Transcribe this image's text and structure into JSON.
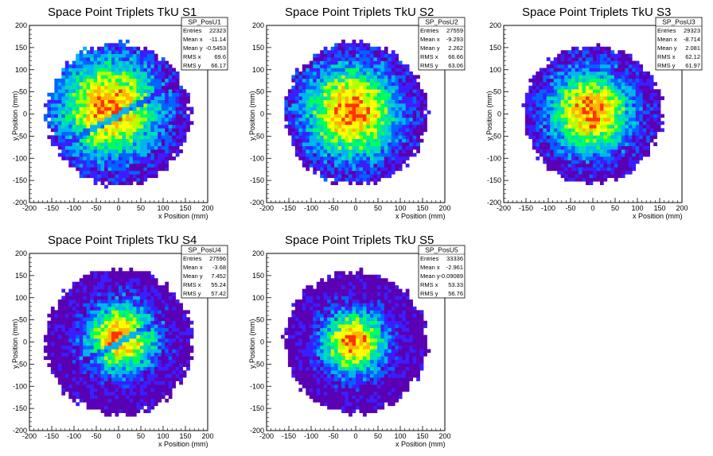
{
  "chart_data": [
    {
      "type": "heatmap",
      "title": "Space Point Triplets TkU S1",
      "xlabel": "x Position (mm)",
      "ylabel": "y Position (mm)",
      "xlim": [
        -200,
        200
      ],
      "ylim": [
        -200,
        200
      ],
      "xticks": [
        -200,
        -150,
        -100,
        -50,
        0,
        50,
        100,
        150,
        200
      ],
      "yticks": [
        -200,
        -150,
        -100,
        -50,
        0,
        50,
        100,
        150,
        200
      ],
      "stats": {
        "name": "SP_PosU1",
        "rows": [
          {
            "label": "Entries",
            "value": "22323"
          },
          {
            "label": "Mean x",
            "value": "-11.14"
          },
          {
            "label": "Mean y",
            "value": "-0.5453"
          },
          {
            "label": "RMS x",
            "value": "69.6"
          },
          {
            "label": "RMS y",
            "value": "66.17"
          }
        ]
      },
      "distribution": {
        "center_x": -20,
        "center_y": 15,
        "radius": 160,
        "sigma": 80,
        "gap_band": "diagonal"
      }
    },
    {
      "type": "heatmap",
      "title": "Space Point Triplets TkU S2",
      "xlabel": "x Position (mm)",
      "ylabel": "y Position (mm)",
      "xlim": [
        -200,
        200
      ],
      "ylim": [
        -200,
        200
      ],
      "xticks": [
        -200,
        -150,
        -100,
        -50,
        0,
        50,
        100,
        150,
        200
      ],
      "yticks": [
        -200,
        -150,
        -100,
        -50,
        0,
        50,
        100,
        150,
        200
      ],
      "stats": {
        "name": "SP_PosU2",
        "rows": [
          {
            "label": "Entries",
            "value": "27559"
          },
          {
            "label": "Mean x",
            "value": "-9.293"
          },
          {
            "label": "Mean y",
            "value": "2.262"
          },
          {
            "label": "RMS x",
            "value": "66.66"
          },
          {
            "label": "RMS y",
            "value": "63.06"
          }
        ]
      },
      "distribution": {
        "center_x": -10,
        "center_y": 5,
        "radius": 160,
        "sigma": 75
      }
    },
    {
      "type": "heatmap",
      "title": "Space Point Triplets TkU S3",
      "xlabel": "x Position (mm)",
      "ylabel": "y Position (mm)",
      "xlim": [
        -200,
        200
      ],
      "ylim": [
        -200,
        200
      ],
      "xticks": [
        -200,
        -150,
        -100,
        -50,
        0,
        50,
        100,
        150,
        200
      ],
      "yticks": [
        -200,
        -150,
        -100,
        -50,
        0,
        50,
        100,
        150,
        200
      ],
      "stats": {
        "name": "SP_PosU3",
        "rows": [
          {
            "label": "Entries",
            "value": "29323"
          },
          {
            "label": "Mean x",
            "value": "-8.714"
          },
          {
            "label": "Mean y",
            "value": "2.081"
          },
          {
            "label": "RMS x",
            "value": "62.12"
          },
          {
            "label": "RMS y",
            "value": "61.97"
          }
        ]
      },
      "distribution": {
        "center_x": -5,
        "center_y": 5,
        "radius": 155,
        "sigma": 65
      }
    },
    {
      "type": "heatmap",
      "title": "Space Point Triplets TkU S4",
      "xlabel": "x Position (mm)",
      "ylabel": "y Position (mm)",
      "xlim": [
        -200,
        200
      ],
      "ylim": [
        -200,
        200
      ],
      "xticks": [
        -200,
        -150,
        -100,
        -50,
        0,
        50,
        100,
        150,
        200
      ],
      "yticks": [
        -200,
        -150,
        -100,
        -50,
        0,
        50,
        100,
        150,
        200
      ],
      "stats": {
        "name": "SP_PosU4",
        "rows": [
          {
            "label": "Entries",
            "value": "27596"
          },
          {
            "label": "Mean x",
            "value": "-3.68"
          },
          {
            "label": "Mean y",
            "value": "7.452"
          },
          {
            "label": "RMS x",
            "value": "55.24"
          },
          {
            "label": "RMS y",
            "value": "57.42"
          }
        ]
      },
      "distribution": {
        "center_x": 5,
        "center_y": 10,
        "radius": 165,
        "sigma": 55,
        "gap_band": "diagonal"
      }
    },
    {
      "type": "heatmap",
      "title": "Space Point Triplets TkU S5",
      "xlabel": "x Position (mm)",
      "ylabel": "y Position (mm)",
      "xlim": [
        -200,
        200
      ],
      "ylim": [
        -200,
        200
      ],
      "xticks": [
        -200,
        -150,
        -100,
        -50,
        0,
        50,
        100,
        150,
        200
      ],
      "yticks": [
        -200,
        -150,
        -100,
        -50,
        0,
        50,
        100,
        150,
        200
      ],
      "stats": {
        "name": "SP_PosU5",
        "rows": [
          {
            "label": "Entries",
            "value": "33336"
          },
          {
            "label": "Mean x",
            "value": "-2.961"
          },
          {
            "label": "Mean y",
            "value": "-0.09089"
          },
          {
            "label": "RMS x",
            "value": "53.33"
          },
          {
            "label": "RMS y",
            "value": "56.76"
          }
        ]
      },
      "distribution": {
        "center_x": -5,
        "center_y": 0,
        "radius": 160,
        "sigma": 50
      }
    }
  ],
  "colors": {
    "palette": [
      "#5a00b4",
      "#3a1eff",
      "#0064ff",
      "#00b4f0",
      "#00dcb4",
      "#00ff5a",
      "#b4ff00",
      "#ffff00",
      "#ffb400",
      "#ff3200"
    ],
    "axis": "#000000",
    "background": "#ffffff"
  }
}
